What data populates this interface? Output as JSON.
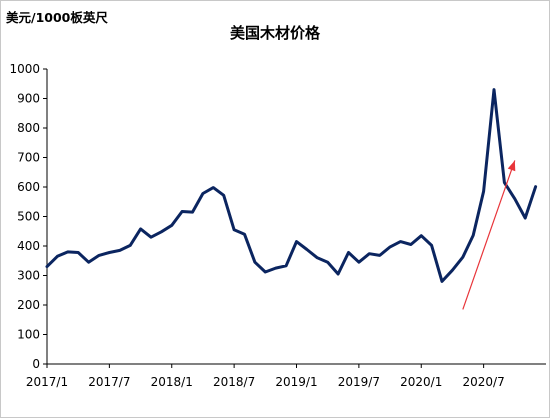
{
  "chart_data": {
    "type": "line",
    "title": "美国木材价格",
    "ylabel": "美元/1000板英尺",
    "xlabel": "",
    "ylim": [
      0,
      1000
    ],
    "yticks": [
      0,
      100,
      200,
      300,
      400,
      500,
      600,
      700,
      800,
      900,
      1000
    ],
    "xticks": [
      "2017/1",
      "2017/7",
      "2018/1",
      "2018/7",
      "2019/1",
      "2019/7",
      "2020/1",
      "2020/7"
    ],
    "grid": false,
    "legend": "none",
    "line_color": "#0b2560",
    "arrow_color": "#e8353a",
    "x": [
      "2017/1",
      "2017/2",
      "2017/3",
      "2017/4",
      "2017/5",
      "2017/6",
      "2017/7",
      "2017/8",
      "2017/9",
      "2017/10",
      "2017/11",
      "2017/12",
      "2018/1",
      "2018/2",
      "2018/3",
      "2018/4",
      "2018/5",
      "2018/6",
      "2018/7",
      "2018/8",
      "2018/9",
      "2018/10",
      "2018/11",
      "2018/12",
      "2019/1",
      "2019/2",
      "2019/3",
      "2019/4",
      "2019/5",
      "2019/6",
      "2019/7",
      "2019/8",
      "2019/9",
      "2019/10",
      "2019/11",
      "2019/12",
      "2020/1",
      "2020/2",
      "2020/3",
      "2020/4",
      "2020/5",
      "2020/6",
      "2020/7",
      "2020/8",
      "2020/9",
      "2020/10",
      "2020/11",
      "2020/12"
    ],
    "values": [
      330,
      365,
      380,
      378,
      345,
      368,
      378,
      385,
      402,
      458,
      430,
      448,
      470,
      517,
      515,
      578,
      598,
      572,
      455,
      440,
      345,
      312,
      325,
      333,
      415,
      388,
      360,
      345,
      305,
      378,
      345,
      374,
      368,
      397,
      415,
      405,
      435,
      402,
      280,
      318,
      362,
      436,
      585,
      930,
      615,
      560,
      495,
      601
    ],
    "annotations": [
      {
        "type": "arrow",
        "from": [
          "2020/5",
          185
        ],
        "to": [
          "2020/10",
          690
        ]
      }
    ]
  }
}
